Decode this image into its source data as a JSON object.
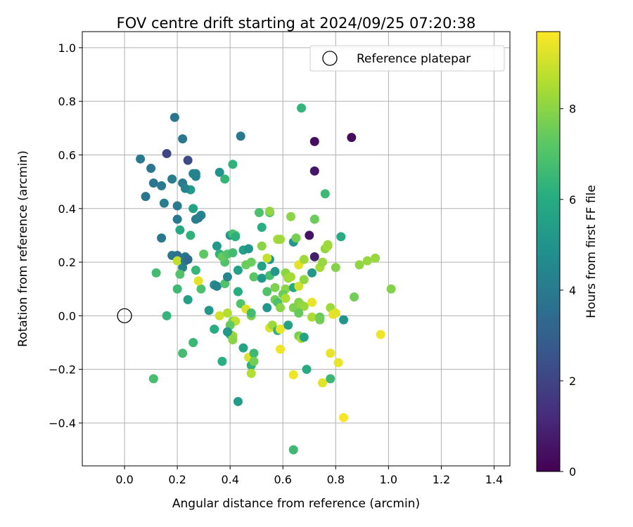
{
  "chart_data": {
    "type": "scatter",
    "title": "FOV centre drift starting at 2024/09/25 07:20:38",
    "xlabel": "Angular distance from reference (arcmin)",
    "ylabel": "Rotation from reference (arcmin)",
    "xlim": [
      -0.16,
      1.46
    ],
    "ylim": [
      -0.56,
      1.06
    ],
    "xticks": [
      "0.0",
      "0.2",
      "0.4",
      "0.6",
      "0.8",
      "1.0",
      "1.2",
      "1.4"
    ],
    "yticks": [
      "−0.4",
      "−0.2",
      "0.0",
      "0.2",
      "0.4",
      "0.6",
      "0.8",
      "1.0"
    ],
    "grid": true,
    "legend": {
      "placement": "top-right",
      "entries": [
        "Reference platepar"
      ]
    },
    "colorbar": {
      "label": "Hours from first FF file",
      "min": 0,
      "max": 9.7,
      "ticks": [
        "0",
        "2",
        "4",
        "6",
        "8"
      ],
      "colormap": "viridis"
    },
    "reference_point": {
      "x": 0.0,
      "y": 0.0,
      "marker": "open-circle"
    },
    "points": [
      [
        0.06,
        0.585,
        4.0
      ],
      [
        0.1,
        0.55,
        3.8
      ],
      [
        0.11,
        0.495,
        3.8
      ],
      [
        0.14,
        0.485,
        4.0
      ],
      [
        0.08,
        0.445,
        3.8
      ],
      [
        0.15,
        0.42,
        4.1
      ],
      [
        0.14,
        0.29,
        3.9
      ],
      [
        0.19,
        0.74,
        3.8
      ],
      [
        0.22,
        0.66,
        3.9
      ],
      [
        0.16,
        0.605,
        2.0
      ],
      [
        0.24,
        0.58,
        2.2
      ],
      [
        0.18,
        0.51,
        4.1
      ],
      [
        0.22,
        0.495,
        4.0
      ],
      [
        0.26,
        0.53,
        4.4
      ],
      [
        0.27,
        0.53,
        4.4
      ],
      [
        0.25,
        0.47,
        5.3
      ],
      [
        0.27,
        0.52,
        4.3
      ],
      [
        0.23,
        0.475,
        4.4
      ],
      [
        0.2,
        0.41,
        4.0
      ],
      [
        0.26,
        0.4,
        5.6
      ],
      [
        0.2,
        0.36,
        3.9
      ],
      [
        0.27,
        0.36,
        4.1
      ],
      [
        0.29,
        0.375,
        4.3
      ],
      [
        0.28,
        0.365,
        4.2
      ],
      [
        0.21,
        0.32,
        5.9
      ],
      [
        0.25,
        0.3,
        6.3
      ],
      [
        0.18,
        0.225,
        3.9
      ],
      [
        0.2,
        0.225,
        3.6
      ],
      [
        0.23,
        0.22,
        3.9
      ],
      [
        0.22,
        0.18,
        4.3
      ],
      [
        0.2,
        0.205,
        8.8
      ],
      [
        0.3,
        0.23,
        7.3
      ],
      [
        0.27,
        0.17,
        6.4
      ],
      [
        0.21,
        0.155,
        7.0
      ],
      [
        0.23,
        0.205,
        3.9
      ],
      [
        0.24,
        0.21,
        3.4
      ],
      [
        0.12,
        0.16,
        6.7
      ],
      [
        0.2,
        0.1,
        6.6
      ],
      [
        0.24,
        0.06,
        5.5
      ],
      [
        0.29,
        0.1,
        6.9
      ],
      [
        0.28,
        0.13,
        9.3
      ],
      [
        0.32,
        0.02,
        5.2
      ],
      [
        0.16,
        0.0,
        6.4
      ],
      [
        0.11,
        -0.235,
        6.8
      ],
      [
        0.22,
        -0.14,
        6.7
      ],
      [
        0.26,
        -0.1,
        6.5
      ],
      [
        0.34,
        0.115,
        4.8
      ],
      [
        0.35,
        0.11,
        4.3
      ],
      [
        0.34,
        -0.05,
        6.0
      ],
      [
        0.36,
        0.0,
        9.0
      ],
      [
        0.35,
        0.26,
        5.2
      ],
      [
        0.36,
        0.23,
        6.3
      ],
      [
        0.38,
        0.2,
        7.0
      ],
      [
        0.37,
        0.22,
        7.4
      ],
      [
        0.39,
        0.23,
        7.1
      ],
      [
        0.38,
        0.12,
        7.0
      ],
      [
        0.39,
        0.145,
        4.5
      ],
      [
        0.36,
        0.535,
        5.0
      ],
      [
        0.38,
        0.51,
        6.4
      ],
      [
        0.4,
        0.3,
        5.2
      ],
      [
        0.41,
        0.305,
        6.8
      ],
      [
        0.42,
        0.3,
        7.0
      ],
      [
        0.42,
        0.295,
        6.2
      ],
      [
        0.41,
        0.565,
        6.3
      ],
      [
        0.44,
        0.67,
        3.9
      ],
      [
        0.41,
        0.235,
        6.7
      ],
      [
        0.43,
        0.09,
        6.0
      ],
      [
        0.43,
        0.17,
        5.6
      ],
      [
        0.44,
        0.045,
        7.0
      ],
      [
        0.45,
        0.245,
        5.5
      ],
      [
        0.46,
        0.19,
        7.5
      ],
      [
        0.47,
        0.25,
        5.1
      ],
      [
        0.46,
        0.025,
        9.2
      ],
      [
        0.48,
        0.0,
        7.8
      ],
      [
        0.48,
        0.2,
        7.5
      ],
      [
        0.49,
        0.145,
        7.2
      ],
      [
        0.48,
        0.01,
        6.7
      ],
      [
        0.39,
        0.01,
        8.6
      ],
      [
        0.41,
        -0.02,
        7.8
      ],
      [
        0.42,
        -0.02,
        8.8
      ],
      [
        0.37,
        -0.17,
        6.1
      ],
      [
        0.4,
        -0.07,
        6.2
      ],
      [
        0.41,
        -0.075,
        8.2
      ],
      [
        0.41,
        -0.09,
        8.0
      ],
      [
        0.4,
        -0.035,
        7.4
      ],
      [
        0.39,
        -0.06,
        5.2
      ],
      [
        0.43,
        -0.32,
        5.4
      ],
      [
        0.45,
        -0.12,
        5.7
      ],
      [
        0.47,
        -0.155,
        9.2
      ],
      [
        0.48,
        -0.185,
        6.3
      ],
      [
        0.49,
        -0.14,
        6.6
      ],
      [
        0.48,
        -0.215,
        8.6
      ],
      [
        0.49,
        -0.17,
        7.6
      ],
      [
        0.51,
        0.385,
        6.9
      ],
      [
        0.55,
        0.385,
        6.8
      ],
      [
        0.55,
        0.39,
        8.1
      ],
      [
        0.52,
        0.33,
        6.1
      ],
      [
        0.55,
        0.21,
        5.2
      ],
      [
        0.54,
        0.215,
        8.9
      ],
      [
        0.52,
        0.26,
        8.0
      ],
      [
        0.52,
        0.185,
        5.6
      ],
      [
        0.52,
        0.14,
        5.2
      ],
      [
        0.54,
        0.09,
        7.0
      ],
      [
        0.55,
        0.15,
        6.8
      ],
      [
        0.57,
        0.165,
        5.2
      ],
      [
        0.54,
        0.03,
        5.1
      ],
      [
        0.55,
        -0.045,
        9.2
      ],
      [
        0.56,
        -0.035,
        8.3
      ],
      [
        0.57,
        0.105,
        7.8
      ],
      [
        0.57,
        0.06,
        7.6
      ],
      [
        0.58,
        0.285,
        8.4
      ],
      [
        0.59,
        0.285,
        8.3
      ],
      [
        0.58,
        0.05,
        6.9
      ],
      [
        0.59,
        0.03,
        8.0
      ],
      [
        0.58,
        -0.055,
        6.3
      ],
      [
        0.59,
        -0.05,
        9.4
      ],
      [
        0.59,
        -0.125,
        9.5
      ],
      [
        0.61,
        0.16,
        8.0
      ],
      [
        0.62,
        0.14,
        8.3
      ],
      [
        0.61,
        0.1,
        8.0
      ],
      [
        0.6,
        0.08,
        7.5
      ],
      [
        0.61,
        0.065,
        8.5
      ],
      [
        0.62,
        -0.035,
        5.6
      ],
      [
        0.63,
        0.37,
        8.0
      ],
      [
        0.63,
        0.145,
        8.4
      ],
      [
        0.64,
        0.105,
        5.9
      ],
      [
        0.64,
        0.03,
        7.8
      ],
      [
        0.64,
        0.275,
        5.2
      ],
      [
        0.65,
        0.29,
        7.7
      ],
      [
        0.66,
        0.19,
        9.3
      ],
      [
        0.66,
        0.11,
        9.0
      ],
      [
        0.66,
        0.05,
        7.9
      ],
      [
        0.67,
        0.04,
        8.0
      ],
      [
        0.68,
        0.035,
        8.2
      ],
      [
        0.66,
        0.01,
        7.4
      ],
      [
        0.66,
        -0.075,
        7.7
      ],
      [
        0.67,
        -0.085,
        8.5
      ],
      [
        0.68,
        -0.08,
        5.7
      ],
      [
        0.64,
        -0.22,
        9.5
      ],
      [
        0.64,
        -0.5,
        6.6
      ],
      [
        0.68,
        0.135,
        8.1
      ],
      [
        0.68,
        0.21,
        8.3
      ],
      [
        0.7,
        0.3,
        0.5
      ],
      [
        0.71,
        0.16,
        5.2
      ],
      [
        0.72,
        0.36,
        8.0
      ],
      [
        0.72,
        0.36,
        7.5
      ],
      [
        0.72,
        0.22,
        0.8
      ],
      [
        0.71,
        0.05,
        9.4
      ],
      [
        0.71,
        -0.005,
        8.5
      ],
      [
        0.69,
        -0.2,
        6.0
      ],
      [
        0.67,
        0.775,
        6.4
      ],
      [
        0.72,
        0.65,
        0.4
      ],
      [
        0.72,
        0.54,
        0.6
      ],
      [
        0.76,
        0.455,
        6.6
      ],
      [
        0.74,
        0.18,
        8.4
      ],
      [
        0.75,
        0.2,
        8.2
      ],
      [
        0.76,
        0.25,
        8.1
      ],
      [
        0.77,
        0.26,
        8.4
      ],
      [
        0.77,
        0.265,
        8.3
      ],
      [
        0.74,
        -0.005,
        7.4
      ],
      [
        0.74,
        -0.015,
        7.6
      ],
      [
        0.75,
        -0.25,
        9.3
      ],
      [
        0.78,
        -0.14,
        9.4
      ],
      [
        0.78,
        -0.235,
        6.5
      ],
      [
        0.78,
        0.03,
        8.3
      ],
      [
        0.79,
        0.005,
        9.4
      ],
      [
        0.8,
        0.01,
        9.3
      ],
      [
        0.8,
        0.18,
        7.9
      ],
      [
        0.81,
        -0.175,
        9.4
      ],
      [
        0.82,
        0.295,
        6.0
      ],
      [
        0.83,
        -0.015,
        5.1
      ],
      [
        0.83,
        -0.38,
        9.6
      ],
      [
        0.86,
        0.665,
        0.3
      ],
      [
        0.87,
        0.07,
        7.6
      ],
      [
        0.89,
        0.19,
        8.1
      ],
      [
        0.92,
        0.205,
        8.2
      ],
      [
        0.95,
        0.215,
        8.2
      ],
      [
        0.97,
        -0.07,
        9.5
      ],
      [
        1.01,
        0.1,
        7.9
      ]
    ]
  }
}
